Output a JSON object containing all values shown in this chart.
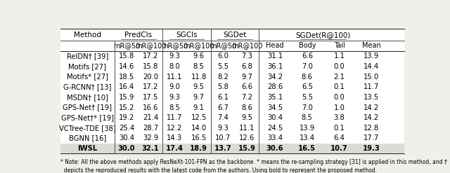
{
  "col_groups": [
    {
      "label": "PredCls",
      "subcols": [
        "mR@50",
        "mR@100"
      ],
      "span": 2
    },
    {
      "label": "SGCls",
      "subcols": [
        "mR@50",
        "mR@100"
      ],
      "span": 2
    },
    {
      "label": "SGDet",
      "subcols": [
        "mR@50",
        "mR@100"
      ],
      "span": 2
    },
    {
      "label": "SGDet(R@100)",
      "subcols": [
        "Head",
        "Body",
        "Tail",
        "Mean"
      ],
      "span": 4
    }
  ],
  "methods": [
    "RelDN† [39]",
    "Motifs [27]",
    "Motifs* [27]",
    "G-RCNN† [13]",
    "MSDN† [10]",
    "GPS-Net† [19]",
    "GPS-Net†* [19]",
    "VCTree-TDE [38]",
    "BGNN [16]",
    "IWSL"
  ],
  "data": [
    [
      15.8,
      17.2,
      9.3,
      9.6,
      6.0,
      7.3,
      31.1,
      6.6,
      1.1,
      13.9
    ],
    [
      14.6,
      15.8,
      8.0,
      8.5,
      5.5,
      6.8,
      36.1,
      7.0,
      0.0,
      14.4
    ],
    [
      18.5,
      20.0,
      11.1,
      11.8,
      8.2,
      9.7,
      34.2,
      8.6,
      2.1,
      15.0
    ],
    [
      16.4,
      17.2,
      9.0,
      9.5,
      5.8,
      6.6,
      28.6,
      6.5,
      0.1,
      11.7
    ],
    [
      15.9,
      17.5,
      9.3,
      9.7,
      6.1,
      7.2,
      35.1,
      5.5,
      0.0,
      13.5
    ],
    [
      15.2,
      16.6,
      8.5,
      9.1,
      6.7,
      8.6,
      34.5,
      7.0,
      1.0,
      14.2
    ],
    [
      19.2,
      21.4,
      11.7,
      12.5,
      7.4,
      9.5,
      30.4,
      8.5,
      3.8,
      14.2
    ],
    [
      25.4,
      28.7,
      12.2,
      14.0,
      9.3,
      11.1,
      24.5,
      13.9,
      0.1,
      12.8
    ],
    [
      30.4,
      32.9,
      14.3,
      16.5,
      10.7,
      12.6,
      33.4,
      13.4,
      6.4,
      17.7
    ],
    [
      30.0,
      32.1,
      17.4,
      18.9,
      13.7,
      15.9,
      30.6,
      16.5,
      10.7,
      19.3
    ]
  ],
  "bold_row": 9,
  "footnote": "* Note: All the above methods apply ResNeXt-101-FPN as the backbone. * means the re-sampling strategy [31] is applied in this method, and †\n  depicts the reproduced results with the latest code from the authors. Using bold to represent the proposed method.",
  "bg_color": "#f0f0eb",
  "last_row_bg": "#dcdcd4",
  "line_color": "#333333"
}
